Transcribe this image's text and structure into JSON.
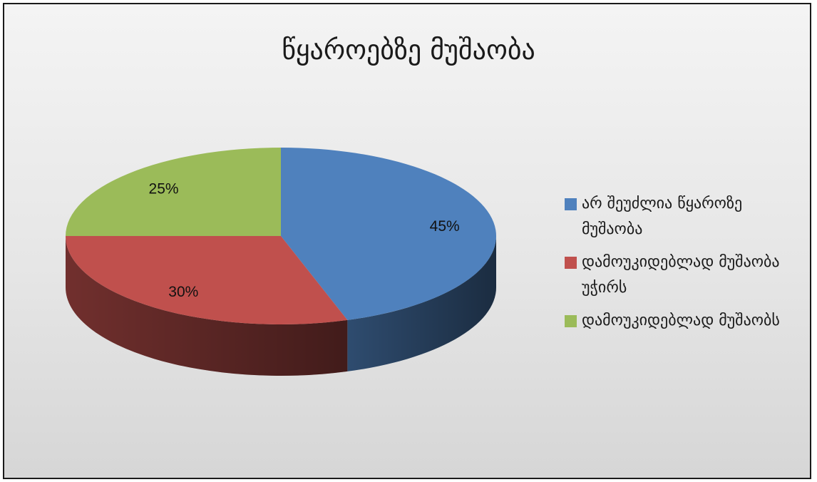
{
  "chart_data": {
    "type": "pie",
    "title": "წყაროებზე მუშაობა",
    "slices": [
      {
        "label": "არ შეუძლია წყაროზე მუშაობა",
        "value": 45,
        "value_label": "45%",
        "color": "#4f81bd"
      },
      {
        "label": "დამოუკიდებლად მუშაობა უჭირს",
        "value": 30,
        "value_label": "30%",
        "color": "#c0504d"
      },
      {
        "label": "დამოუკიდებლად მუშაობს",
        "value": 25,
        "value_label": "25%",
        "color": "#9bbb59"
      }
    ],
    "legend_position": "right",
    "style": "3d"
  }
}
